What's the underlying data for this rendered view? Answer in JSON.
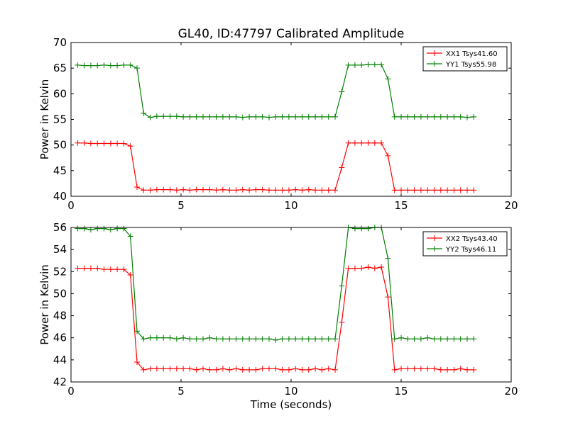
{
  "title": "GL40, ID:47797 Calibrated Amplitude",
  "colors": {
    "xx": "#ff0000",
    "yy": "#008000"
  },
  "chart_data": [
    {
      "type": "line",
      "ylabel": "Power in Kelvin",
      "xlabel": "",
      "xlim": [
        0,
        20
      ],
      "ylim": [
        40,
        70
      ],
      "xticks": [
        0,
        5,
        10,
        15,
        20
      ],
      "yticks": [
        40,
        45,
        50,
        55,
        60,
        65,
        70
      ],
      "grid": false,
      "legend_position": "top-right",
      "x": [
        0.3,
        0.6,
        0.9,
        1.2,
        1.5,
        1.8,
        2.1,
        2.4,
        2.7,
        3.0,
        3.3,
        3.6,
        3.9,
        4.2,
        4.5,
        4.8,
        5.1,
        5.4,
        5.7,
        6.0,
        6.3,
        6.6,
        6.9,
        7.2,
        7.5,
        7.8,
        8.1,
        8.4,
        8.7,
        9.0,
        9.3,
        9.6,
        9.9,
        10.2,
        10.5,
        10.8,
        11.1,
        11.4,
        11.7,
        12.0,
        12.3,
        12.6,
        12.9,
        13.2,
        13.5,
        13.8,
        14.1,
        14.4,
        14.7,
        15.0,
        15.3,
        15.6,
        15.9,
        16.2,
        16.5,
        16.8,
        17.1,
        17.4,
        17.7,
        18.0,
        18.3
      ],
      "series": [
        {
          "name": "XX1 Tsys41.60",
          "color": "#ff0000",
          "values": [
            50.4,
            50.4,
            50.3,
            50.3,
            50.3,
            50.3,
            50.3,
            50.3,
            49.8,
            41.8,
            41.2,
            41.2,
            41.3,
            41.3,
            41.3,
            41.2,
            41.3,
            41.2,
            41.3,
            41.3,
            41.3,
            41.2,
            41.3,
            41.2,
            41.2,
            41.3,
            41.2,
            41.3,
            41.3,
            41.2,
            41.2,
            41.2,
            41.2,
            41.3,
            41.2,
            41.3,
            41.2,
            41.2,
            41.2,
            41.2,
            45.6,
            50.4,
            50.4,
            50.4,
            50.4,
            50.4,
            50.4,
            47.9,
            41.2,
            41.2,
            41.2,
            41.2,
            41.2,
            41.2,
            41.2,
            41.2,
            41.2,
            41.2,
            41.2,
            41.2,
            41.2
          ]
        },
        {
          "name": "YY1 Tsys55.98",
          "color": "#008000",
          "values": [
            65.6,
            65.5,
            65.5,
            65.5,
            65.6,
            65.5,
            65.5,
            65.6,
            65.6,
            65.0,
            56.2,
            55.4,
            55.6,
            55.6,
            55.6,
            55.6,
            55.5,
            55.5,
            55.5,
            55.5,
            55.5,
            55.5,
            55.5,
            55.5,
            55.5,
            55.4,
            55.5,
            55.5,
            55.5,
            55.4,
            55.5,
            55.5,
            55.5,
            55.5,
            55.5,
            55.5,
            55.5,
            55.5,
            55.5,
            55.5,
            60.4,
            65.6,
            65.6,
            65.6,
            65.7,
            65.7,
            65.7,
            62.9,
            55.5,
            55.5,
            55.5,
            55.5,
            55.5,
            55.5,
            55.5,
            55.5,
            55.5,
            55.5,
            55.5,
            55.4,
            55.5
          ]
        }
      ]
    },
    {
      "type": "line",
      "ylabel": "Power in Kelvin",
      "xlabel": "Time (seconds)",
      "xlim": [
        0,
        20
      ],
      "ylim": [
        42,
        56
      ],
      "xticks": [
        0,
        5,
        10,
        15,
        20
      ],
      "yticks": [
        42,
        44,
        46,
        48,
        50,
        52,
        54,
        56
      ],
      "grid": false,
      "legend_position": "top-right",
      "x": [
        0.3,
        0.6,
        0.9,
        1.2,
        1.5,
        1.8,
        2.1,
        2.4,
        2.7,
        3.0,
        3.3,
        3.6,
        3.9,
        4.2,
        4.5,
        4.8,
        5.1,
        5.4,
        5.7,
        6.0,
        6.3,
        6.6,
        6.9,
        7.2,
        7.5,
        7.8,
        8.1,
        8.4,
        8.7,
        9.0,
        9.3,
        9.6,
        9.9,
        10.2,
        10.5,
        10.8,
        11.1,
        11.4,
        11.7,
        12.0,
        12.3,
        12.6,
        12.9,
        13.2,
        13.5,
        13.8,
        14.1,
        14.4,
        14.7,
        15.0,
        15.3,
        15.6,
        15.9,
        16.2,
        16.5,
        16.8,
        17.1,
        17.4,
        17.7,
        18.0,
        18.3
      ],
      "series": [
        {
          "name": "XX2 Tsys43.40",
          "color": "#ff0000",
          "values": [
            52.3,
            52.3,
            52.3,
            52.3,
            52.2,
            52.2,
            52.2,
            52.2,
            51.7,
            43.8,
            43.1,
            43.2,
            43.2,
            43.2,
            43.2,
            43.2,
            43.2,
            43.2,
            43.1,
            43.2,
            43.1,
            43.1,
            43.2,
            43.1,
            43.2,
            43.1,
            43.1,
            43.1,
            43.2,
            43.2,
            43.2,
            43.1,
            43.1,
            43.2,
            43.1,
            43.1,
            43.2,
            43.1,
            43.2,
            43.1,
            47.4,
            52.3,
            52.3,
            52.3,
            52.4,
            52.3,
            52.4,
            49.7,
            43.1,
            43.2,
            43.2,
            43.2,
            43.2,
            43.2,
            43.2,
            43.1,
            43.1,
            43.1,
            43.2,
            43.1,
            43.1
          ]
        },
        {
          "name": "YY2 Tsys46.11",
          "color": "#008000",
          "values": [
            55.9,
            55.9,
            55.8,
            55.9,
            55.9,
            55.8,
            55.9,
            55.9,
            55.2,
            46.6,
            45.9,
            46.0,
            46.0,
            46.0,
            46.0,
            45.9,
            46.0,
            45.9,
            45.9,
            45.9,
            46.0,
            45.9,
            45.9,
            45.9,
            45.9,
            45.9,
            45.9,
            45.9,
            45.9,
            45.9,
            45.8,
            45.9,
            45.9,
            45.9,
            45.9,
            45.9,
            45.9,
            45.9,
            45.9,
            45.9,
            50.7,
            56.0,
            55.9,
            55.9,
            55.9,
            56.0,
            56.0,
            53.2,
            45.9,
            46.0,
            45.9,
            45.9,
            45.9,
            46.0,
            45.9,
            45.9,
            45.9,
            45.9,
            45.9,
            45.9,
            45.9
          ]
        }
      ]
    }
  ]
}
